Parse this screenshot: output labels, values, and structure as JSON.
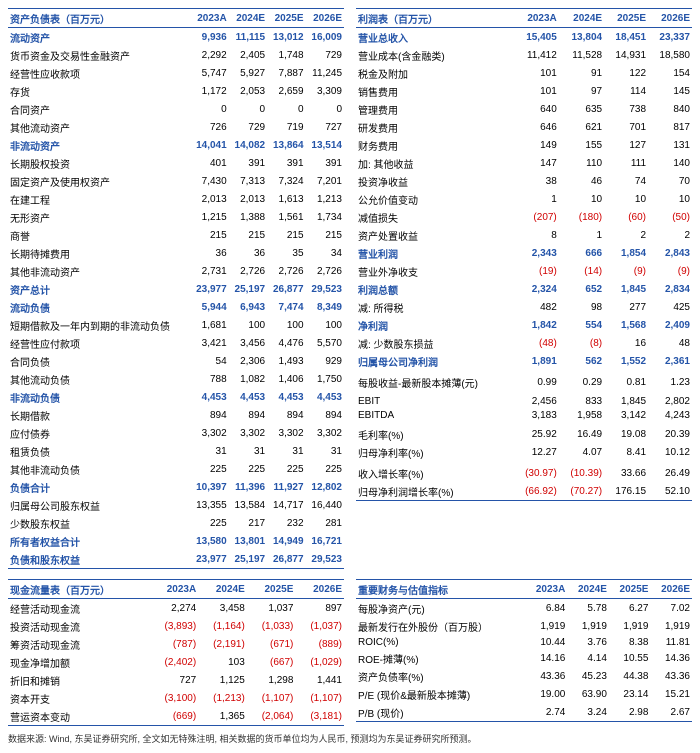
{
  "footnote": "数据来源: Wind, 东吴证券研究所, 全文如无特殊注明, 相关数据的货币单位均为人民币, 预测均为东吴证券研究所预测。",
  "balance": {
    "title": "资产负债表（百万元）",
    "cols": [
      "2023A",
      "2024E",
      "2025E",
      "2026E"
    ],
    "rows": [
      {
        "l": "流动资产",
        "v": [
          "9,936",
          "11,115",
          "13,012",
          "16,009"
        ],
        "b": 1
      },
      {
        "l": "货币资金及交易性金融资产",
        "v": [
          "2,292",
          "2,405",
          "1,748",
          "729"
        ]
      },
      {
        "l": "经营性应收款项",
        "v": [
          "5,747",
          "5,927",
          "7,887",
          "11,245"
        ]
      },
      {
        "l": "存货",
        "v": [
          "1,172",
          "2,053",
          "2,659",
          "3,309"
        ]
      },
      {
        "l": "合同资产",
        "v": [
          "0",
          "0",
          "0",
          "0"
        ]
      },
      {
        "l": "其他流动资产",
        "v": [
          "726",
          "729",
          "719",
          "727"
        ]
      },
      {
        "l": "非流动资产",
        "v": [
          "14,041",
          "14,082",
          "13,864",
          "13,514"
        ],
        "b": 1
      },
      {
        "l": "长期股权投资",
        "v": [
          "401",
          "391",
          "391",
          "391"
        ]
      },
      {
        "l": "固定资产及使用权资产",
        "v": [
          "7,430",
          "7,313",
          "7,324",
          "7,201"
        ]
      },
      {
        "l": "在建工程",
        "v": [
          "2,013",
          "2,013",
          "1,613",
          "1,213"
        ]
      },
      {
        "l": "无形资产",
        "v": [
          "1,215",
          "1,388",
          "1,561",
          "1,734"
        ]
      },
      {
        "l": "商誉",
        "v": [
          "215",
          "215",
          "215",
          "215"
        ]
      },
      {
        "l": "长期待摊费用",
        "v": [
          "36",
          "36",
          "35",
          "34"
        ]
      },
      {
        "l": "其他非流动资产",
        "v": [
          "2,731",
          "2,726",
          "2,726",
          "2,726"
        ]
      },
      {
        "l": "资产总计",
        "v": [
          "23,977",
          "25,197",
          "26,877",
          "29,523"
        ],
        "b": 1
      },
      {
        "l": "流动负债",
        "v": [
          "5,944",
          "6,943",
          "7,474",
          "8,349"
        ],
        "b": 1
      },
      {
        "l": "短期借款及一年内到期的非流动负债",
        "v": [
          "1,681",
          "100",
          "100",
          "100"
        ]
      },
      {
        "l": "经营性应付款项",
        "v": [
          "3,421",
          "3,456",
          "4,476",
          "5,570"
        ]
      },
      {
        "l": "合同负债",
        "v": [
          "54",
          "2,306",
          "1,493",
          "929"
        ]
      },
      {
        "l": "其他流动负债",
        "v": [
          "788",
          "1,082",
          "1,406",
          "1,750"
        ]
      },
      {
        "l": "非流动负债",
        "v": [
          "4,453",
          "4,453",
          "4,453",
          "4,453"
        ],
        "b": 1
      },
      {
        "l": "长期借款",
        "v": [
          "894",
          "894",
          "894",
          "894"
        ]
      },
      {
        "l": "应付债券",
        "v": [
          "3,302",
          "3,302",
          "3,302",
          "3,302"
        ]
      },
      {
        "l": "租赁负债",
        "v": [
          "31",
          "31",
          "31",
          "31"
        ]
      },
      {
        "l": "其他非流动负债",
        "v": [
          "225",
          "225",
          "225",
          "225"
        ]
      },
      {
        "l": "负债合计",
        "v": [
          "10,397",
          "11,396",
          "11,927",
          "12,802"
        ],
        "b": 1
      },
      {
        "l": "归属母公司股东权益",
        "v": [
          "13,355",
          "13,584",
          "14,717",
          "16,440"
        ]
      },
      {
        "l": "少数股东权益",
        "v": [
          "225",
          "217",
          "232",
          "281"
        ]
      },
      {
        "l": "所有者权益合计",
        "v": [
          "13,580",
          "13,801",
          "14,949",
          "16,721"
        ],
        "b": 1
      },
      {
        "l": "负债和股东权益",
        "v": [
          "23,977",
          "25,197",
          "26,877",
          "29,523"
        ],
        "b": 1
      }
    ]
  },
  "income": {
    "title": "利润表（百万元）",
    "cols": [
      "2023A",
      "2024E",
      "2025E",
      "2026E"
    ],
    "rows": [
      {
        "l": "营业总收入",
        "v": [
          "15,405",
          "13,804",
          "18,451",
          "23,337"
        ],
        "b": 1
      },
      {
        "l": "营业成本(含金融类)",
        "v": [
          "11,412",
          "11,528",
          "14,931",
          "18,580"
        ]
      },
      {
        "l": "税金及附加",
        "v": [
          "101",
          "91",
          "122",
          "154"
        ]
      },
      {
        "l": "销售费用",
        "v": [
          "101",
          "97",
          "114",
          "145"
        ]
      },
      {
        "l": "管理费用",
        "v": [
          "640",
          "635",
          "738",
          "840"
        ]
      },
      {
        "l": "研发费用",
        "v": [
          "646",
          "621",
          "701",
          "817"
        ]
      },
      {
        "l": "财务费用",
        "v": [
          "149",
          "155",
          "127",
          "131"
        ]
      },
      {
        "l": "加: 其他收益",
        "v": [
          "147",
          "110",
          "111",
          "140"
        ]
      },
      {
        "l": "投资净收益",
        "v": [
          "38",
          "46",
          "74",
          "70"
        ]
      },
      {
        "l": "公允价值变动",
        "v": [
          "1",
          "10",
          "10",
          "10"
        ]
      },
      {
        "l": "减值损失",
        "v": [
          "(207)",
          "(180)",
          "(60)",
          "(50)"
        ],
        "neg": 1
      },
      {
        "l": "资产处置收益",
        "v": [
          "8",
          "1",
          "2",
          "2"
        ]
      },
      {
        "l": "营业利润",
        "v": [
          "2,343",
          "666",
          "1,854",
          "2,843"
        ],
        "b": 1
      },
      {
        "l": "营业外净收支",
        "v": [
          "(19)",
          "(14)",
          "(9)",
          "(9)"
        ],
        "neg": 1
      },
      {
        "l": "利润总额",
        "v": [
          "2,324",
          "652",
          "1,845",
          "2,834"
        ],
        "b": 1
      },
      {
        "l": "减: 所得税",
        "v": [
          "482",
          "98",
          "277",
          "425"
        ]
      },
      {
        "l": "净利润",
        "v": [
          "1,842",
          "554",
          "1,568",
          "2,409"
        ],
        "b": 1
      },
      {
        "l": "减: 少数股东损益",
        "v": [
          "(48)",
          "(8)",
          "16",
          "48"
        ],
        "neg": [
          1,
          1,
          0,
          0
        ]
      },
      {
        "l": "归属母公司净利润",
        "v": [
          "1,891",
          "562",
          "1,552",
          "2,361"
        ],
        "b": 1
      },
      {
        "l": "",
        "v": [
          "",
          "",
          "",
          ""
        ]
      },
      {
        "l": "每股收益-最新股本摊薄(元)",
        "v": [
          "0.99",
          "0.29",
          "0.81",
          "1.23"
        ]
      },
      {
        "l": "",
        "v": [
          "",
          "",
          "",
          ""
        ]
      },
      {
        "l": "EBIT",
        "v": [
          "2,456",
          "833",
          "1,845",
          "2,802"
        ]
      },
      {
        "l": "EBITDA",
        "v": [
          "3,183",
          "1,958",
          "3,142",
          "4,243"
        ]
      },
      {
        "l": "",
        "v": [
          "",
          "",
          "",
          ""
        ]
      },
      {
        "l": "毛利率(%)",
        "v": [
          "25.92",
          "16.49",
          "19.08",
          "20.39"
        ]
      },
      {
        "l": "归母净利率(%)",
        "v": [
          "12.27",
          "4.07",
          "8.41",
          "10.12"
        ]
      },
      {
        "l": "",
        "v": [
          "",
          "",
          "",
          ""
        ]
      },
      {
        "l": "收入增长率(%)",
        "v": [
          "(30.97)",
          "(10.39)",
          "33.66",
          "26.49"
        ],
        "neg": [
          1,
          1,
          0,
          0
        ]
      },
      {
        "l": "归母净利润增长率(%)",
        "v": [
          "(66.92)",
          "(70.27)",
          "176.15",
          "52.10"
        ],
        "neg": [
          1,
          1,
          0,
          0
        ]
      }
    ]
  },
  "cashflow": {
    "title": "现金流量表（百万元）",
    "cols": [
      "2023A",
      "2024E",
      "2025E",
      "2026E"
    ],
    "rows": [
      {
        "l": "经营活动现金流",
        "v": [
          "2,274",
          "3,458",
          "1,037",
          "897"
        ]
      },
      {
        "l": "投资活动现金流",
        "v": [
          "(3,893)",
          "(1,164)",
          "(1,033)",
          "(1,037)"
        ],
        "neg": 1
      },
      {
        "l": "筹资活动现金流",
        "v": [
          "(787)",
          "(2,191)",
          "(671)",
          "(889)"
        ],
        "neg": 1
      },
      {
        "l": "现金净增加额",
        "v": [
          "(2,402)",
          "103",
          "(667)",
          "(1,029)"
        ],
        "neg": [
          1,
          0,
          1,
          1
        ]
      },
      {
        "l": "折旧和摊销",
        "v": [
          "727",
          "1,125",
          "1,298",
          "1,441"
        ]
      },
      {
        "l": "资本开支",
        "v": [
          "(3,100)",
          "(1,213)",
          "(1,107)",
          "(1,107)"
        ],
        "neg": 1
      },
      {
        "l": "营运资本变动",
        "v": [
          "(669)",
          "1,365",
          "(2,064)",
          "(3,181)"
        ],
        "neg": [
          1,
          0,
          1,
          1
        ]
      }
    ]
  },
  "metrics": {
    "title": "重要财务与估值指标",
    "cols": [
      "2023A",
      "2024E",
      "2025E",
      "2026E"
    ],
    "rows": [
      {
        "l": "每股净资产(元)",
        "v": [
          "6.84",
          "5.78",
          "6.27",
          "7.02"
        ]
      },
      {
        "l": "最新发行在外股份（百万股）",
        "v": [
          "1,919",
          "1,919",
          "1,919",
          "1,919"
        ]
      },
      {
        "l": "ROIC(%)",
        "v": [
          "10.44",
          "3.76",
          "8.38",
          "11.81"
        ]
      },
      {
        "l": "ROE-摊薄(%)",
        "v": [
          "14.16",
          "4.14",
          "10.55",
          "14.36"
        ]
      },
      {
        "l": "资产负债率(%)",
        "v": [
          "43.36",
          "45.23",
          "44.38",
          "43.36"
        ]
      },
      {
        "l": "P/E (现价&最新股本摊薄)",
        "v": [
          "19.00",
          "63.90",
          "23.14",
          "15.21"
        ]
      },
      {
        "l": "P/B (现价)",
        "v": [
          "2.74",
          "3.24",
          "2.98",
          "2.67"
        ]
      }
    ]
  }
}
